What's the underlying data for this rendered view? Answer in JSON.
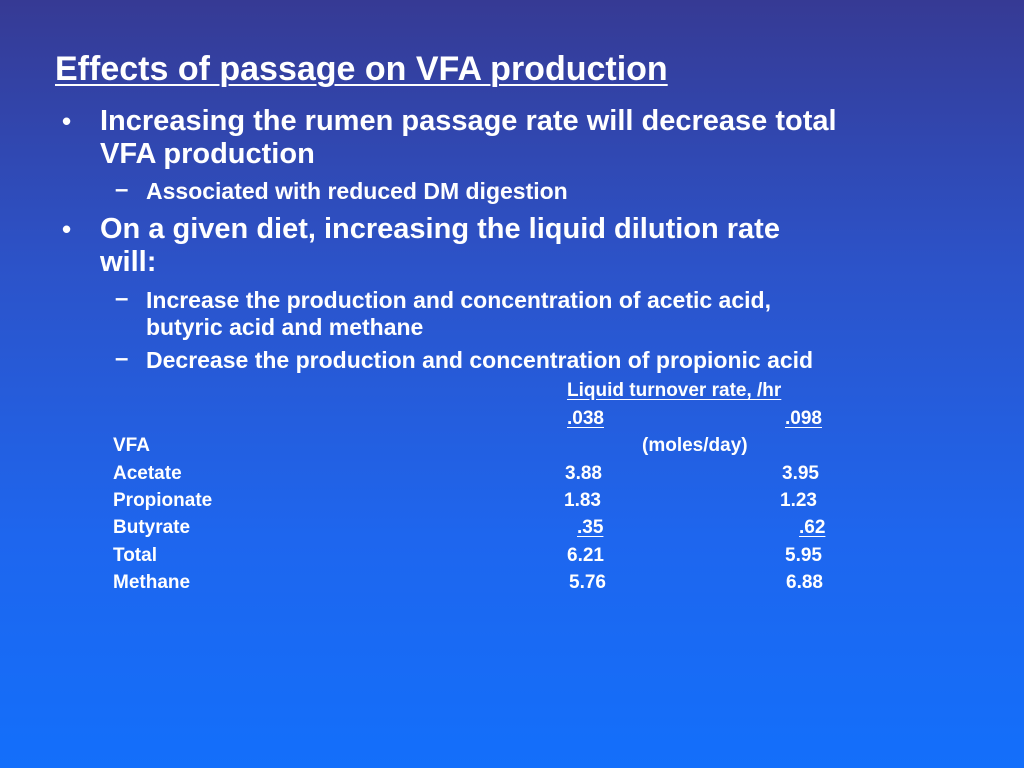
{
  "title": "Effects of passage on VFA production",
  "bullets": [
    {
      "mark": "•",
      "line1": "Increasing the rumen passage rate will decrease total",
      "line2": "VFA production",
      "subs": [
        {
          "mark": "–",
          "line1": "Associated with reduced DM digestion"
        }
      ]
    },
    {
      "mark": "•",
      "line1": "On a given diet, increasing the liquid dilution rate",
      "line2": "will:",
      "subs": [
        {
          "mark": "–",
          "line1": "Increase the production and concentration of acetic acid,",
          "line2": "butyric acid and methane"
        },
        {
          "mark": "–",
          "line1": "Decrease the production and concentration of propionic acid"
        }
      ]
    }
  ],
  "table": {
    "header": "Liquid turnover rate, /hr",
    "rates": [
      ".038",
      ".098"
    ],
    "row_header": "VFA",
    "unit": "(moles/day)",
    "rows": [
      {
        "label": "Acetate",
        "v1": "3.88",
        "v2": "3.95"
      },
      {
        "label": "Propionate",
        "v1": "1.83",
        "v2": "1.23"
      },
      {
        "label": "Butyrate",
        "v1": ".35",
        "v2": ".62"
      },
      {
        "label": "Total",
        "v1": "6.21",
        "v2": "5.95"
      },
      {
        "label": "Methane",
        "v1": "5.76",
        "v2": "6.88"
      }
    ]
  }
}
